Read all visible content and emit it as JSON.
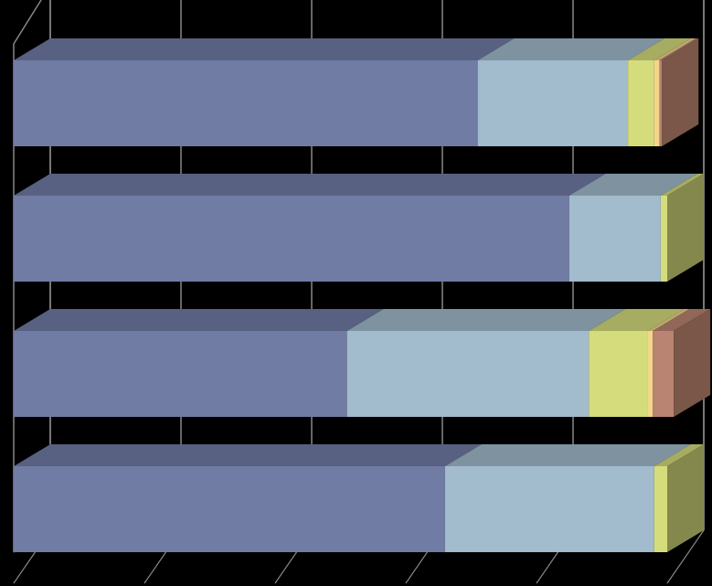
{
  "chart_data": {
    "type": "bar",
    "orientation": "horizontal",
    "stacked": true,
    "percent_stacked": true,
    "three_d": true,
    "title": "",
    "xlabel": "",
    "ylabel": "",
    "xlim": [
      0,
      100
    ],
    "grid": true,
    "legend": "none",
    "categories": [
      "",
      "",
      "",
      ""
    ],
    "series": [
      {
        "values": [
          71,
          85,
          51,
          66
        ],
        "color": "#717ca5"
      },
      {
        "values": [
          23,
          14,
          37,
          32
        ],
        "color": "#a2bbcd"
      },
      {
        "values": [
          4,
          1,
          9,
          2
        ],
        "color": "#d5dc7c"
      },
      {
        "values": [
          0.8,
          0,
          0.8,
          0
        ],
        "color": "#f3d68a"
      },
      {
        "values": [
          0.4,
          0,
          3.2,
          0
        ],
        "color": "#b98472"
      }
    ],
    "colors": {
      "background": "#000000",
      "gridline": "#888888",
      "side_face": "#7a5748"
    }
  }
}
